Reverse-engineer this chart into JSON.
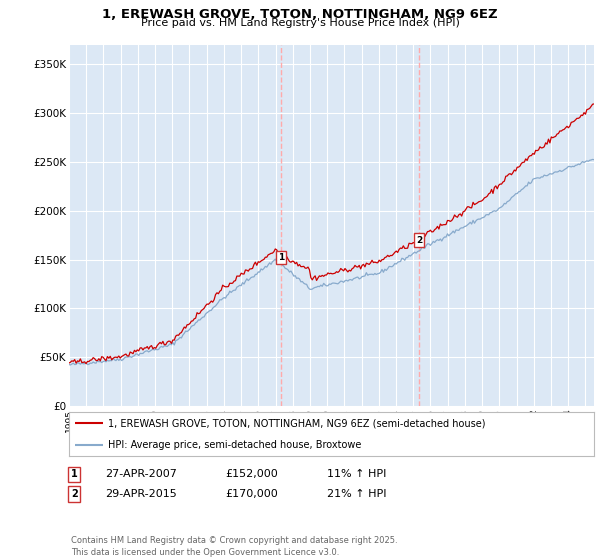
{
  "title": "1, EREWASH GROVE, TOTON, NOTTINGHAM, NG9 6EZ",
  "subtitle": "Price paid vs. HM Land Registry's House Price Index (HPI)",
  "ylim": [
    0,
    370000
  ],
  "xlim_start": 1995,
  "xlim_end": 2025.5,
  "bg_color": "#dce8f5",
  "red_color": "#cc0000",
  "blue_color": "#88aacc",
  "dashed_color": "#ffaaaa",
  "legend1": "1, EREWASH GROVE, TOTON, NOTTINGHAM, NG9 6EZ (semi-detached house)",
  "legend2": "HPI: Average price, semi-detached house, Broxtowe",
  "marker1_x": 2007.32,
  "marker1_y": 152000,
  "marker1_label": "1",
  "marker2_x": 2015.33,
  "marker2_y": 170000,
  "marker2_label": "2",
  "note1_date": "27-APR-2007",
  "note1_price": "£152,000",
  "note1_hpi": "11% ↑ HPI",
  "note2_date": "29-APR-2015",
  "note2_price": "£170,000",
  "note2_hpi": "21% ↑ HPI",
  "footer": "Contains HM Land Registry data © Crown copyright and database right 2025.\nThis data is licensed under the Open Government Licence v3.0."
}
